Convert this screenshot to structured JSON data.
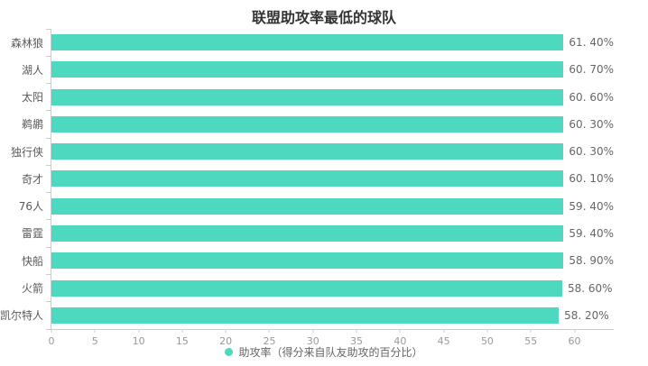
{
  "title": "联盟助攻率最低的球队",
  "legend": {
    "label": "助攻率（得分来自队友助攻的百分比）"
  },
  "colors": {
    "bar": "#4dd9c0",
    "title_text": "#333333",
    "category_text": "#5a5a5a",
    "value_text": "#666666",
    "tick_text": "#999999",
    "axis_line": "#cccccc"
  },
  "chart_data": {
    "type": "bar",
    "orientation": "horizontal",
    "title": "联盟助攻率最低的球队",
    "xlabel": "",
    "ylabel": "",
    "categories": [
      "森林狼",
      "湖人",
      "太阳",
      "鹈鹕",
      "独行侠",
      "奇才",
      "76人",
      "雷霆",
      "快船",
      "火箭",
      "凯尔特人"
    ],
    "series": [
      {
        "name": "助攻率（得分来自队友助攻的百分比）",
        "values": [
          61.4,
          60.7,
          60.6,
          60.3,
          60.3,
          60.1,
          59.4,
          59.4,
          58.9,
          58.6,
          58.2
        ],
        "value_labels": [
          "61. 40%",
          "60. 70%",
          "60. 60%",
          "60. 30%",
          "60. 30%",
          "60. 10%",
          "59. 40%",
          "59. 40%",
          "58. 90%",
          "58. 60%",
          "58. 20%"
        ]
      }
    ],
    "xlim": [
      0,
      64.5
    ],
    "xticks": [
      0,
      5,
      10,
      15,
      20,
      25,
      30,
      35,
      40,
      45,
      50,
      55,
      60
    ],
    "grid": false,
    "legend_position": "bottom"
  }
}
